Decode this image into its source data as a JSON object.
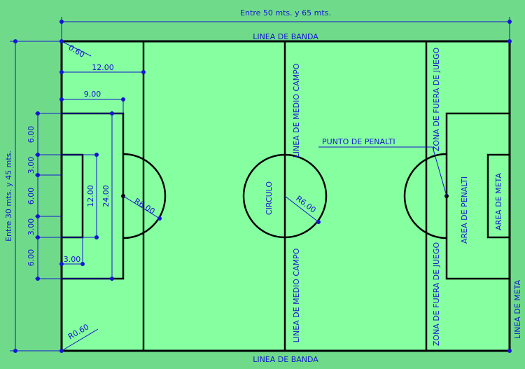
{
  "colors": {
    "background": "#6fdb8a",
    "field": "#85ffa0",
    "line": "#000000",
    "dimension": "#1515d0"
  },
  "labels": {
    "width_range": "Entre 50 mts. y 65 mts.",
    "length_range": "Entre 30 mts. y 45 mts.",
    "banda_top": "LINEA DE BANDA",
    "banda_bottom": "LINEA DE BANDA",
    "medio_campo_top": "LINEA DE MEDIO CAMPO",
    "medio_campo_bottom": "LINEA DE MEDIO CAMPO",
    "fuera_juego_top": "ZONA DE FUERA DE JUEGO",
    "fuera_juego_bottom": "ZONA DE FUERA DE JUEGO",
    "punto_penalti": "PUNTO DE PENALTI",
    "area_penalti": "AREA DE PENALTI",
    "area_meta": "AREA DE META",
    "linea_meta": "LINEA DE META",
    "circulo": "CIRCULO"
  },
  "dimensions": {
    "corner_top": "0.60",
    "corner_bottom": "R0.60",
    "d12": "12.00",
    "d9": "9.00",
    "v6a": "6.00",
    "v3a": "3.00",
    "v6b": "6.00",
    "v3b": "3.00",
    "v6c": "6.00",
    "v12": "12.00",
    "v24": "24.00",
    "d3": "3.00",
    "r_arc": "R6.00",
    "r_center": "R6.00"
  }
}
